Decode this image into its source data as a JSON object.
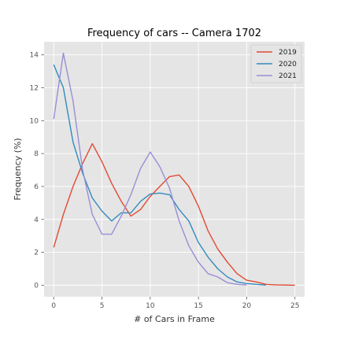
{
  "chart_data": {
    "type": "line",
    "title": "Frequency of cars -- Camera 1702",
    "xlabel": "# of Cars in Frame",
    "ylabel": "Frequency (%)",
    "xlim": [
      -1,
      26
    ],
    "ylim": [
      -0.7,
      14.8
    ],
    "xticks": [
      0,
      5,
      10,
      15,
      20,
      25
    ],
    "yticks": [
      0,
      2,
      4,
      6,
      8,
      10,
      12,
      14
    ],
    "grid": true,
    "legend_position": "top-right",
    "series": [
      {
        "name": "2019",
        "color": "#E24A33",
        "x": [
          0,
          1,
          2,
          3,
          4,
          5,
          6,
          7,
          8,
          9,
          10,
          11,
          12,
          13,
          14,
          15,
          16,
          17,
          18,
          19,
          20,
          21,
          22,
          23,
          24,
          25
        ],
        "values": [
          2.3,
          4.3,
          6.0,
          7.4,
          8.6,
          7.5,
          6.2,
          5.1,
          4.2,
          4.6,
          5.4,
          6.0,
          6.6,
          6.7,
          6.0,
          4.8,
          3.3,
          2.2,
          1.4,
          0.7,
          0.3,
          0.2,
          0.05,
          0.02,
          0.01,
          0.0
        ]
      },
      {
        "name": "2020",
        "color": "#348ABD",
        "x": [
          0,
          1,
          2,
          3,
          4,
          5,
          6,
          7,
          8,
          9,
          10,
          11,
          12,
          13,
          14,
          15,
          16,
          17,
          18,
          19,
          20,
          21,
          22
        ],
        "values": [
          13.4,
          12.0,
          8.7,
          6.8,
          5.3,
          4.5,
          3.9,
          4.4,
          4.4,
          5.1,
          5.55,
          5.6,
          5.5,
          4.6,
          3.9,
          2.6,
          1.7,
          1.0,
          0.5,
          0.2,
          0.1,
          0.05,
          0.01
        ]
      },
      {
        "name": "2021",
        "color": "#988ED5",
        "x": [
          0,
          1,
          2,
          3,
          4,
          5,
          6,
          7,
          8,
          9,
          10,
          11,
          12,
          13,
          14,
          15,
          16,
          17,
          18,
          19,
          20
        ],
        "values": [
          10.1,
          14.1,
          11.2,
          7.0,
          4.3,
          3.1,
          3.1,
          4.2,
          5.5,
          7.1,
          8.1,
          7.2,
          5.9,
          3.9,
          2.4,
          1.4,
          0.7,
          0.5,
          0.15,
          0.05,
          0.01
        ]
      }
    ]
  }
}
